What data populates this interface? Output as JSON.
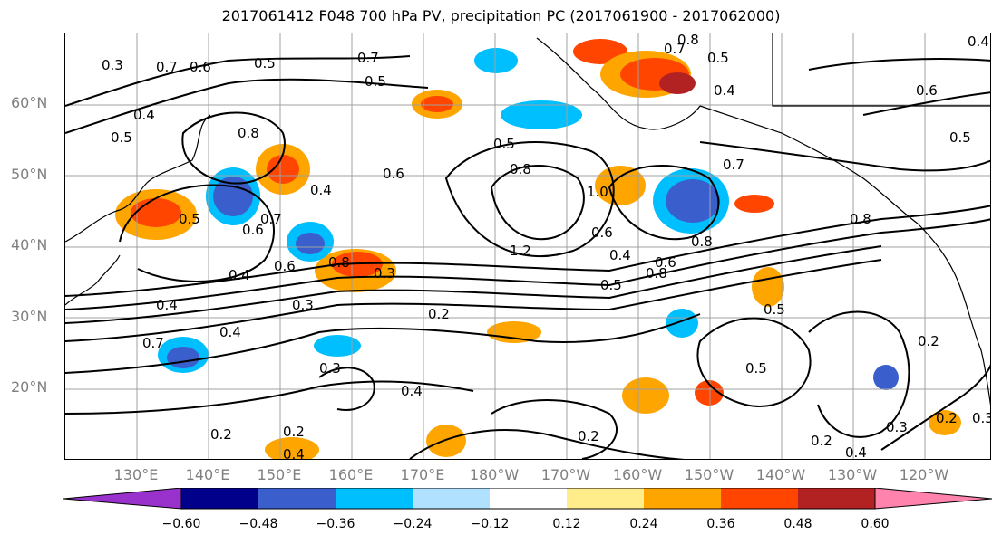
{
  "title": "2017061412 F048 700 hPa PV, precipitation PC (2017061900 - 2017062000)",
  "lat_labels": [
    "60°N",
    "50°N",
    "40°N",
    "30°N",
    "20°N"
  ],
  "lon_labels": [
    "130°E",
    "140°E",
    "150°E",
    "160°E",
    "170°E",
    "180°W",
    "170°W",
    "160°W",
    "150°W",
    "140°W",
    "130°W",
    "120°W"
  ],
  "colorbar": {
    "tick_labels": [
      "−0.60",
      "−0.48",
      "−0.36",
      "−0.24",
      "−0.12",
      "0.12",
      "0.24",
      "0.36",
      "0.48",
      "0.60"
    ],
    "colors": [
      "#9932cc",
      "#00008b",
      "#3a5fcd",
      "#00bfff",
      "#b0e2ff",
      "#ffffff",
      "#ffec8b",
      "#ffa500",
      "#ff4500",
      "#b22222",
      "#ff83ac"
    ]
  },
  "contour_labels": [
    "0.7",
    "0.6",
    "0.5",
    "0.7",
    "0.5",
    "0.8",
    "0.7",
    "0.5",
    "0.4",
    "0.6",
    "0.4",
    "0.5",
    "0.4",
    "0.8",
    "0.5",
    "0.8",
    "1.0",
    "0.6",
    "1.2",
    "0.5",
    "0.6",
    "0.8",
    "0.4",
    "0.8",
    "0.4",
    "0.6",
    "0.5",
    "0.7",
    "0.4",
    "0.6",
    "0.8",
    "0.3",
    "0.4",
    "0.7",
    "0.2",
    "0.3",
    "0.5",
    "0.4",
    "0.2",
    "0.2",
    "0.2",
    "0.3",
    "0.5",
    "0.3",
    "0.5",
    "0.2",
    "0.2",
    "0.4",
    "0.3",
    "0.8",
    "0.7",
    "0.6",
    "0.4",
    "0.3",
    "0.2",
    "0.4"
  ]
}
